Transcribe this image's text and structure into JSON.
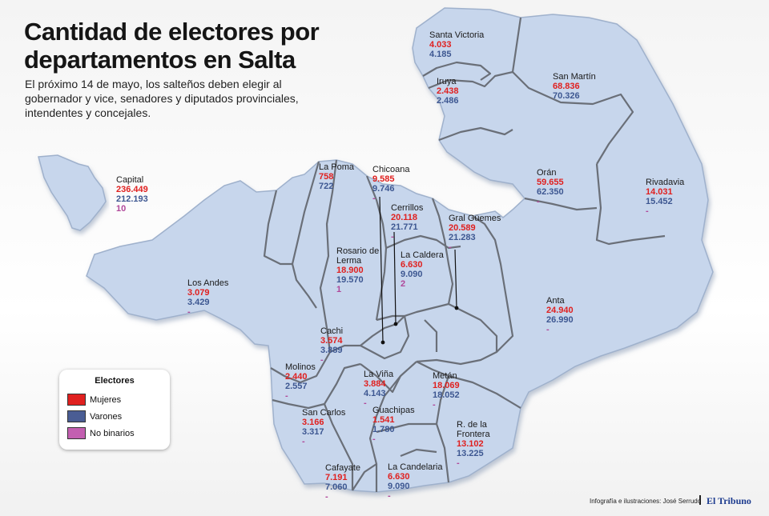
{
  "title": "Cantidad de electores por departamentos en Salta",
  "subtitle": "El próximo 14 de mayo, los salteños deben elegir al gobernador y vice, senadores y diputados provinciales, intendentes y concejales.",
  "legend": {
    "title": "Electores",
    "items": [
      {
        "label": "Mujeres",
        "color": "#e0201f"
      },
      {
        "label": "Varones",
        "color": "#4a5d94"
      },
      {
        "label": "No binarios",
        "color": "#c35fb1"
      }
    ]
  },
  "departments": [
    {
      "name": "Santa Victoria",
      "mujeres": "4.033",
      "varones": "4.185",
      "no_binarios": ""
    },
    {
      "name": "Iruya",
      "mujeres": "2.438",
      "varones": "2.486",
      "no_binarios": ""
    },
    {
      "name": "San Martín",
      "mujeres": "68.836",
      "varones": "70.326",
      "no_binarios": ""
    },
    {
      "name": "Capital",
      "mujeres": "236.449",
      "varones": "212.193",
      "no_binarios": "10"
    },
    {
      "name": "La Poma",
      "mujeres": "758",
      "varones": "722",
      "no_binarios": ""
    },
    {
      "name": "Chicoana",
      "mujeres": "9.585",
      "varones": "9.746",
      "no_binarios": "-"
    },
    {
      "name": "Orán",
      "mujeres": "59.655",
      "varones": "62.350",
      "no_binarios": "-"
    },
    {
      "name": "Rivadavia",
      "mujeres": "14.031",
      "varones": "15.452",
      "no_binarios": "-"
    },
    {
      "name": "Cerrillos",
      "mujeres": "20.118",
      "varones": "21.771",
      "no_binarios": "-"
    },
    {
      "name": "Gral Güemes",
      "mujeres": "20.589",
      "varones": "21.283",
      "no_binarios": "-"
    },
    {
      "name": "Rosario de Lerma",
      "mujeres": "18.900",
      "varones": "19.570",
      "no_binarios": "1"
    },
    {
      "name": "La Caldera",
      "mujeres": "6.630",
      "varones": "9.090",
      "no_binarios": "2"
    },
    {
      "name": "Los Andes",
      "mujeres": "3.079",
      "varones": "3.429",
      "no_binarios": "-"
    },
    {
      "name": "Anta",
      "mujeres": "24.940",
      "varones": "26.990",
      "no_binarios": "-"
    },
    {
      "name": "Cachi",
      "mujeres": "3.574",
      "varones": "3.889",
      "no_binarios": "-"
    },
    {
      "name": "Molinos",
      "mujeres": "2.440",
      "varones": "2.557",
      "no_binarios": "-"
    },
    {
      "name": "La Viña",
      "mujeres": "3.884",
      "varones": "4.143",
      "no_binarios": "-"
    },
    {
      "name": "Metán",
      "mujeres": "18.069",
      "varones": "18.052",
      "no_binarios": "-"
    },
    {
      "name": "San Carlos",
      "mujeres": "3.166",
      "varones": "3.317",
      "no_binarios": "-"
    },
    {
      "name": "Guachipas",
      "mujeres": "1.541",
      "varones": "1.780",
      "no_binarios": "-"
    },
    {
      "name": "R. de la Frontera",
      "mujeres": "13.102",
      "varones": "13.225",
      "no_binarios": "-"
    },
    {
      "name": "Cafayate",
      "mujeres": "7.191",
      "varones": "7.060",
      "no_binarios": "-"
    },
    {
      "name": "La Candelaria",
      "mujeres": "6.630",
      "varones": "9.090",
      "no_binarios": "-"
    }
  ],
  "credit": "Infografía e ilustraciones: José Serrudo",
  "brand": "El Tribuno"
}
